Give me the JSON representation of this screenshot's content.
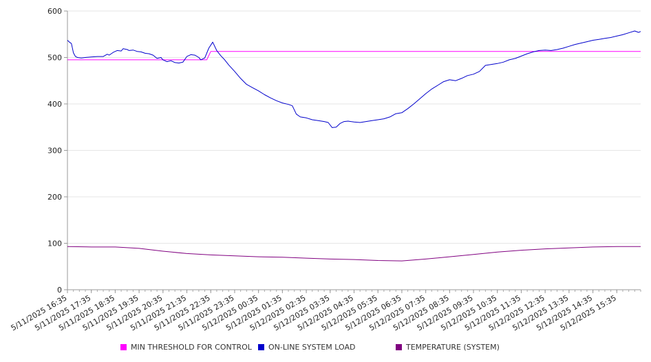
{
  "chart_data": {
    "type": "line",
    "title": "",
    "xlabel": "",
    "ylabel": "",
    "ylim": [
      0,
      600
    ],
    "yticks": [
      0,
      100,
      200,
      300,
      400,
      500,
      600
    ],
    "grid": true,
    "legend_position": "bottom",
    "x_tick_labels": [
      "5/11/2025 16:35",
      "5/11/2025 17:35",
      "5/11/2025 18:35",
      "5/11/2025 19:35",
      "5/11/2025 20:35",
      "5/11/2025 21:35",
      "5/11/2025 22:35",
      "5/11/2025 23:35",
      "5/12/2025 00:35",
      "5/12/2025 01:35",
      "5/12/2025 02:35",
      "5/12/2025 03:35",
      "5/12/2025 04:35",
      "5/12/2025 05:35",
      "5/12/2025 06:35",
      "5/12/2025 07:35",
      "5/12/2025 08:35",
      "5/12/2025 09:35",
      "5/12/2025 10:35",
      "5/12/2025 11:35",
      "5/12/2025 12:35",
      "5/12/2025 13:35",
      "5/12/2025 14:35",
      "5/12/2025 15:35"
    ],
    "x_start": "5/11/2025 16:35",
    "x_end": "5/12/2025 16:35",
    "series": [
      {
        "name": "MIN THRESHOLD FOR CONTROL",
        "color": "#ff00ff",
        "points": [
          [
            "5/11/2025 16:35",
            495
          ],
          [
            "5/11/2025 22:25",
            495
          ],
          [
            "5/11/2025 22:35",
            513
          ],
          [
            "5/12/2025 16:35",
            513
          ]
        ]
      },
      {
        "name": "ON-LINE SYSTEM LOAD",
        "color": "#0000cc",
        "points": [
          [
            "5/11/2025 16:35",
            537
          ],
          [
            "5/11/2025 16:40",
            533
          ],
          [
            "5/11/2025 16:45",
            530
          ],
          [
            "5/11/2025 16:50",
            510
          ],
          [
            "5/11/2025 16:55",
            502
          ],
          [
            "5/11/2025 17:00",
            500
          ],
          [
            "5/11/2025 17:10",
            499
          ],
          [
            "5/11/2025 17:20",
            500
          ],
          [
            "5/11/2025 17:35",
            501
          ],
          [
            "5/11/2025 17:50",
            502
          ],
          [
            "5/11/2025 18:05",
            502
          ],
          [
            "5/11/2025 18:15",
            507
          ],
          [
            "5/11/2025 18:20",
            505
          ],
          [
            "5/11/2025 18:30",
            511
          ],
          [
            "5/11/2025 18:40",
            515
          ],
          [
            "5/11/2025 18:50",
            514
          ],
          [
            "5/11/2025 18:55",
            519
          ],
          [
            "5/11/2025 19:05",
            517
          ],
          [
            "5/11/2025 19:10",
            515
          ],
          [
            "5/11/2025 19:20",
            516
          ],
          [
            "5/11/2025 19:30",
            513
          ],
          [
            "5/11/2025 19:40",
            512
          ],
          [
            "5/11/2025 19:50",
            509
          ],
          [
            "5/11/2025 20:00",
            508
          ],
          [
            "5/11/2025 20:10",
            505
          ],
          [
            "5/11/2025 20:20",
            498
          ],
          [
            "5/11/2025 20:30",
            500
          ],
          [
            "5/11/2025 20:35",
            495
          ],
          [
            "5/11/2025 20:45",
            491
          ],
          [
            "5/11/2025 20:55",
            493
          ],
          [
            "5/11/2025 21:05",
            489
          ],
          [
            "5/11/2025 21:15",
            488
          ],
          [
            "5/11/2025 21:25",
            490
          ],
          [
            "5/11/2025 21:35",
            502
          ],
          [
            "5/11/2025 21:45",
            506
          ],
          [
            "5/11/2025 21:55",
            505
          ],
          [
            "5/11/2025 22:05",
            500
          ],
          [
            "5/11/2025 22:10",
            495
          ],
          [
            "5/11/2025 22:20",
            499
          ],
          [
            "5/11/2025 22:30",
            520
          ],
          [
            "5/11/2025 22:40",
            533
          ],
          [
            "5/11/2025 22:50",
            515
          ],
          [
            "5/11/2025 23:00",
            504
          ],
          [
            "5/11/2025 23:10",
            495
          ],
          [
            "5/11/2025 23:20",
            484
          ],
          [
            "5/11/2025 23:35",
            470
          ],
          [
            "5/11/2025 23:50",
            455
          ],
          [
            "5/12/2025 00:05",
            442
          ],
          [
            "5/12/2025 00:20",
            435
          ],
          [
            "5/12/2025 00:35",
            428
          ],
          [
            "5/12/2025 00:50",
            420
          ],
          [
            "5/12/2025 01:05",
            413
          ],
          [
            "5/12/2025 01:20",
            407
          ],
          [
            "5/12/2025 01:35",
            402
          ],
          [
            "5/12/2025 01:50",
            399
          ],
          [
            "5/12/2025 02:00",
            396
          ],
          [
            "5/12/2025 02:10",
            378
          ],
          [
            "5/12/2025 02:20",
            372
          ],
          [
            "5/12/2025 02:35",
            370
          ],
          [
            "5/12/2025 02:50",
            366
          ],
          [
            "5/12/2025 03:05",
            364
          ],
          [
            "5/12/2025 03:20",
            362
          ],
          [
            "5/12/2025 03:30",
            360
          ],
          [
            "5/12/2025 03:40",
            349
          ],
          [
            "5/12/2025 03:50",
            350
          ],
          [
            "5/12/2025 04:00",
            358
          ],
          [
            "5/12/2025 04:10",
            362
          ],
          [
            "5/12/2025 04:20",
            363
          ],
          [
            "5/12/2025 04:35",
            361
          ],
          [
            "5/12/2025 04:50",
            360
          ],
          [
            "5/12/2025 05:05",
            362
          ],
          [
            "5/12/2025 05:20",
            364
          ],
          [
            "5/12/2025 05:35",
            366
          ],
          [
            "5/12/2025 05:50",
            368
          ],
          [
            "5/12/2025 06:05",
            372
          ],
          [
            "5/12/2025 06:20",
            379
          ],
          [
            "5/12/2025 06:35",
            381
          ],
          [
            "5/12/2025 06:50",
            390
          ],
          [
            "5/12/2025 07:05",
            400
          ],
          [
            "5/12/2025 07:20",
            411
          ],
          [
            "5/12/2025 07:35",
            422
          ],
          [
            "5/12/2025 07:50",
            432
          ],
          [
            "5/12/2025 08:05",
            440
          ],
          [
            "5/12/2025 08:20",
            448
          ],
          [
            "5/12/2025 08:35",
            452
          ],
          [
            "5/12/2025 08:50",
            450
          ],
          [
            "5/12/2025 09:05",
            455
          ],
          [
            "5/12/2025 09:20",
            461
          ],
          [
            "5/12/2025 09:35",
            464
          ],
          [
            "5/12/2025 09:50",
            470
          ],
          [
            "5/12/2025 10:05",
            483
          ],
          [
            "5/12/2025 10:20",
            485
          ],
          [
            "5/12/2025 10:35",
            487
          ],
          [
            "5/12/2025 10:50",
            490
          ],
          [
            "5/12/2025 11:05",
            495
          ],
          [
            "5/12/2025 11:20",
            498
          ],
          [
            "5/12/2025 11:35",
            503
          ],
          [
            "5/12/2025 11:50",
            508
          ],
          [
            "5/12/2025 12:05",
            512
          ],
          [
            "5/12/2025 12:20",
            515
          ],
          [
            "5/12/2025 12:35",
            516
          ],
          [
            "5/12/2025 12:50",
            515
          ],
          [
            "5/12/2025 13:05",
            517
          ],
          [
            "5/12/2025 13:20",
            520
          ],
          [
            "5/12/2025 13:35",
            524
          ],
          [
            "5/12/2025 13:50",
            528
          ],
          [
            "5/12/2025 14:05",
            531
          ],
          [
            "5/12/2025 14:20",
            534
          ],
          [
            "5/12/2025 14:35",
            537
          ],
          [
            "5/12/2025 14:50",
            539
          ],
          [
            "5/12/2025 15:05",
            541
          ],
          [
            "5/12/2025 15:20",
            543
          ],
          [
            "5/12/2025 15:35",
            546
          ],
          [
            "5/12/2025 15:50",
            549
          ],
          [
            "5/12/2025 16:05",
            553
          ],
          [
            "5/12/2025 16:20",
            557
          ],
          [
            "5/12/2025 16:30",
            554
          ],
          [
            "5/12/2025 16:35",
            556
          ]
        ]
      },
      {
        "name": "TEMPERATURE (SYSTEM)",
        "color": "#800080",
        "points": [
          [
            "5/11/2025 16:35",
            93
          ],
          [
            "5/11/2025 17:35",
            92
          ],
          [
            "5/11/2025 18:35",
            92
          ],
          [
            "5/11/2025 19:35",
            89
          ],
          [
            "5/11/2025 20:35",
            83
          ],
          [
            "5/11/2025 21:35",
            78
          ],
          [
            "5/11/2025 22:35",
            75
          ],
          [
            "5/11/2025 23:35",
            73
          ],
          [
            "5/12/2025 00:35",
            71
          ],
          [
            "5/12/2025 01:35",
            70
          ],
          [
            "5/12/2025 02:35",
            68
          ],
          [
            "5/12/2025 03:35",
            66
          ],
          [
            "5/12/2025 04:35",
            65
          ],
          [
            "5/12/2025 05:35",
            63
          ],
          [
            "5/12/2025 06:35",
            62
          ],
          [
            "5/12/2025 07:35",
            66
          ],
          [
            "5/12/2025 08:35",
            71
          ],
          [
            "5/12/2025 09:35",
            76
          ],
          [
            "5/12/2025 10:35",
            81
          ],
          [
            "5/12/2025 11:35",
            85
          ],
          [
            "5/12/2025 12:35",
            88
          ],
          [
            "5/12/2025 13:35",
            90
          ],
          [
            "5/12/2025 14:35",
            92
          ],
          [
            "5/12/2025 15:35",
            93
          ],
          [
            "5/12/2025 16:35",
            93
          ]
        ]
      }
    ]
  },
  "legend": [
    {
      "label": "MIN THRESHOLD FOR CONTROL",
      "color": "#ff00ff"
    },
    {
      "label": "ON-LINE SYSTEM LOAD",
      "color": "#0000cc"
    },
    {
      "label": "TEMPERATURE (SYSTEM)",
      "color": "#800080"
    }
  ]
}
